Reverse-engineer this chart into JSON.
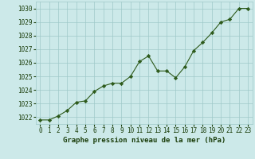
{
  "x": [
    0,
    1,
    2,
    3,
    4,
    5,
    6,
    7,
    8,
    9,
    10,
    11,
    12,
    13,
    14,
    15,
    16,
    17,
    18,
    19,
    20,
    21,
    22,
    23
  ],
  "y": [
    1021.8,
    1021.8,
    1022.1,
    1022.5,
    1023.1,
    1023.2,
    1023.9,
    1024.3,
    1024.5,
    1024.5,
    1025.0,
    1026.1,
    1026.5,
    1025.4,
    1025.4,
    1024.9,
    1025.7,
    1026.9,
    1027.5,
    1028.2,
    1029.0,
    1029.2,
    1030.0,
    1030.0
  ],
  "line_color": "#2d5a1b",
  "marker": "D",
  "marker_size": 2.2,
  "background_color": "#cce9e9",
  "grid_color": "#9fc8c8",
  "xlabel": "Graphe pression niveau de la mer (hPa)",
  "xlabel_color": "#1a3d0a",
  "tick_color": "#1a3d0a",
  "ylim": [
    1021.5,
    1030.5
  ],
  "xlim": [
    -0.5,
    23.5
  ],
  "yticks": [
    1022,
    1023,
    1024,
    1025,
    1026,
    1027,
    1028,
    1029,
    1030
  ],
  "xticks": [
    0,
    1,
    2,
    3,
    4,
    5,
    6,
    7,
    8,
    9,
    10,
    11,
    12,
    13,
    14,
    15,
    16,
    17,
    18,
    19,
    20,
    21,
    22,
    23
  ],
  "tick_fontsize": 5.5,
  "xlabel_fontsize": 6.5
}
